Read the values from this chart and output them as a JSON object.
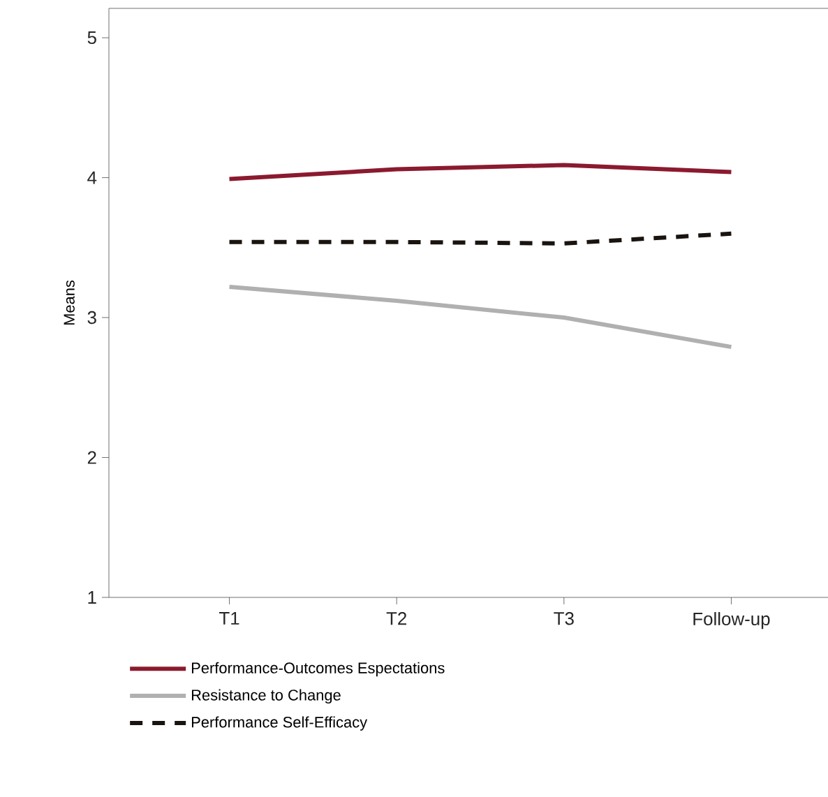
{
  "chart_data": {
    "type": "line",
    "ylabel": "Means",
    "categories": [
      "T1",
      "T2",
      "T3",
      "Follow-up"
    ],
    "series": [
      {
        "name": "Performance-Outcomes Espectations",
        "color": "#8b1a2e",
        "values": [
          3.99,
          4.06,
          4.09,
          4.04
        ],
        "line_style": "solid"
      },
      {
        "name": "Resistance to Change",
        "color": "#b0b0b0",
        "values": [
          3.22,
          3.12,
          3.0,
          2.79
        ],
        "line_style": "solid"
      },
      {
        "name": "Performance Self-Efficacy",
        "color": "#1a1410",
        "values": [
          3.54,
          3.54,
          3.53,
          3.6
        ],
        "line_style": "dashed"
      }
    ],
    "ylim": [
      1,
      5.21
    ],
    "yticks": [
      1,
      2,
      3,
      4,
      5
    ],
    "grid": false,
    "legend": "bottom",
    "marker": "none"
  }
}
